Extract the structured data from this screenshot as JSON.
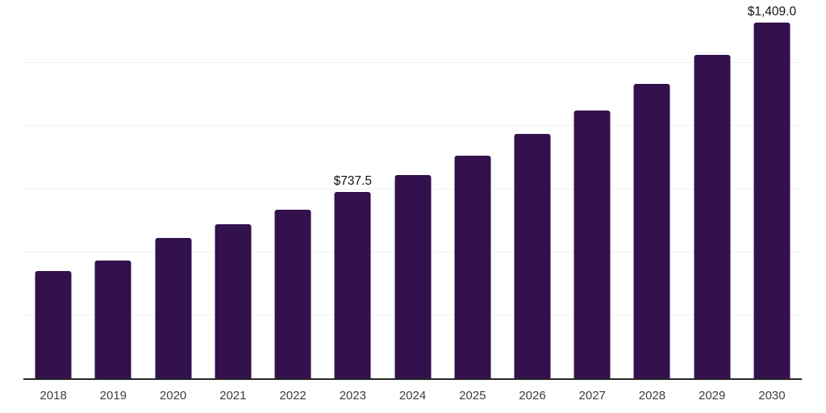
{
  "chart_data": {
    "type": "bar",
    "title": "",
    "categories": [
      "2018",
      "2019",
      "2020",
      "2021",
      "2022",
      "2023",
      "2024",
      "2025",
      "2026",
      "2027",
      "2028",
      "2029",
      "2030"
    ],
    "values": [
      425,
      466,
      557,
      612,
      669,
      737.5,
      806,
      883,
      969,
      1062,
      1167,
      1283,
      1409
    ],
    "data_labels": [
      "",
      "",
      "",
      "",
      "",
      "$737.5",
      "",
      "",
      "",
      "",
      "",
      "",
      "$1,409.0"
    ],
    "xlabel": "",
    "ylabel": "",
    "ylim": [
      0,
      1500
    ],
    "gridline_step": 250,
    "grid": true,
    "legend_position": "none",
    "y_axis_labels_visible": false,
    "colors": {
      "bar": "#33114D",
      "axis_line": "#262626",
      "gridline": "#f2f2f2",
      "tick_label": "#3d3d3d",
      "data_label": "#141414",
      "background": "#ffffff"
    }
  }
}
